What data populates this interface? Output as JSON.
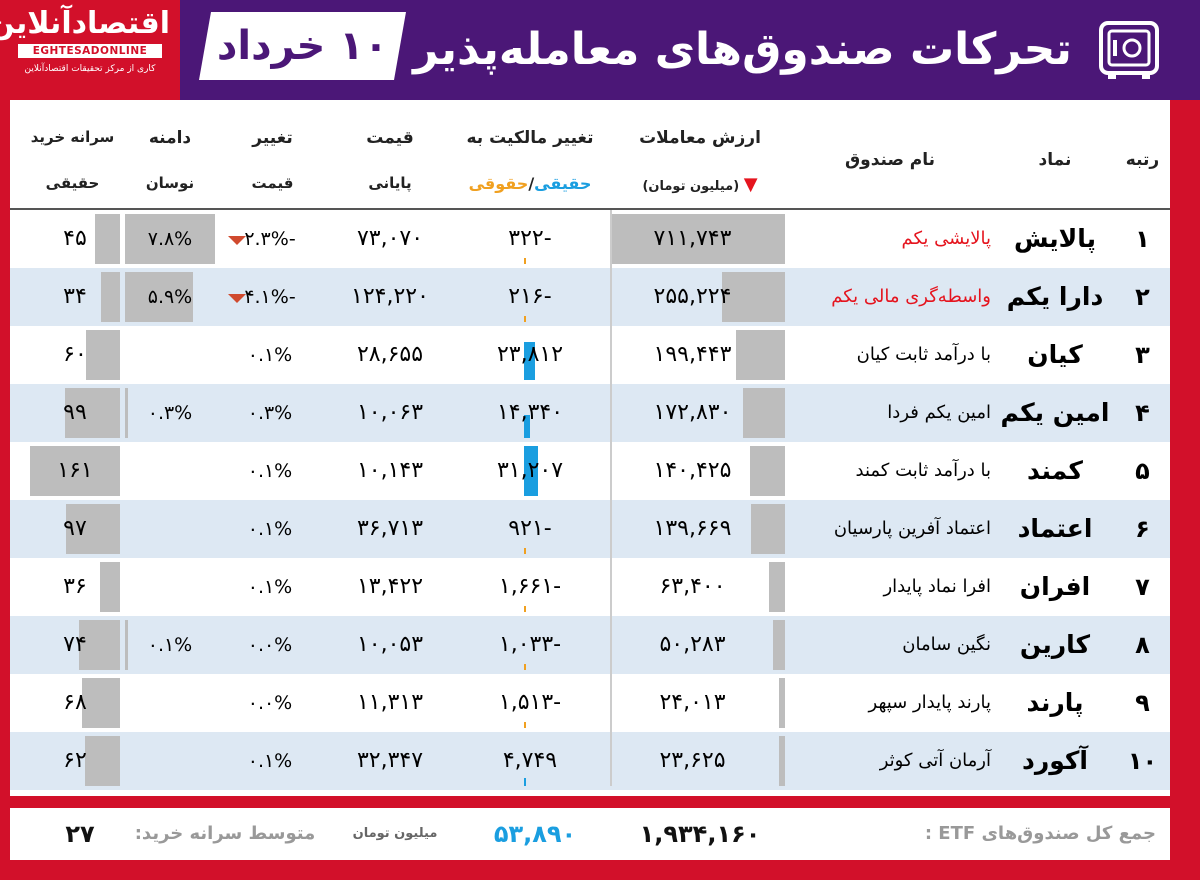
{
  "header": {
    "title": "تحرکات صندوق‌های معامله‌پذیر",
    "date": "۱۰ خرداد",
    "logo": {
      "name": "اقتصادآنلاین",
      "latin": "EGHTESADONLINE",
      "tagline": "کاری از مرکز تحقیقات اقتصادآنلاین"
    }
  },
  "columns": {
    "rank": "رتبه",
    "symbol": "نماد",
    "fund_name": "نام صندوق",
    "trade_value_l1": "ارزش معاملات",
    "trade_value_l2": "(میلیون تومان)",
    "ownership_l1": "تغییر مالکیت به",
    "ownership_l2a": "حقیقی",
    "ownership_sep": "/",
    "ownership_l2b": "حقوقی",
    "price_l1": "قیمت",
    "price_l2": "پایانی",
    "change_l1": "تغییر",
    "change_l2": "قیمت",
    "range_l1": "دامنه",
    "range_l2": "نوسان",
    "percap_l1": "سرانه خرید",
    "percap_l2": "حقیقی"
  },
  "colors": {
    "header_purple": "#4b1777",
    "brand_red": "#d2102a",
    "highlight_red": "#e5141e",
    "buy_blue": "#1a9ee0",
    "sell_orange": "#f0a020",
    "bar_gray": "#bdbdbd"
  },
  "rows": [
    {
      "rank": "۱",
      "symbol": "پالایش",
      "name": "پالایشی یکم",
      "name_red": true,
      "trade": "۷۱۱,۷۴۳",
      "trade_val": 711743,
      "own": "-۳۲۲",
      "own_val": -322,
      "price": "۷۳,۰۷۰",
      "change": "-۲.۳%",
      "down": true,
      "range": "۷.۸%",
      "range_val": 7.8,
      "percap": "۴۵",
      "percap_val": 45
    },
    {
      "rank": "۲",
      "symbol": "دارا یکم",
      "name": "واسطه‌گری مالی یکم",
      "name_red": true,
      "trade": "۲۵۵,۲۲۴",
      "trade_val": 255224,
      "own": "-۲۱۶",
      "own_val": -216,
      "price": "۱۲۴,۲۲۰",
      "change": "-۴.۱%",
      "down": true,
      "range": "۵.۹%",
      "range_val": 5.9,
      "percap": "۳۴",
      "percap_val": 34
    },
    {
      "rank": "۳",
      "symbol": "کیان",
      "name": "با درآمد ثابت کیان",
      "name_red": false,
      "trade": "۱۹۹,۴۴۳",
      "trade_val": 199443,
      "own": "۲۳,۸۱۲",
      "own_val": 23812,
      "price": "۲۸,۶۵۵",
      "change": "۰.۱%",
      "down": false,
      "range": "",
      "range_val": 0,
      "percap": "۶۰",
      "percap_val": 60
    },
    {
      "rank": "۴",
      "symbol": "امین یکم",
      "name": "امین یکم فردا",
      "name_red": false,
      "trade": "۱۷۲,۸۳۰",
      "trade_val": 172830,
      "own": "۱۴,۳۴۰",
      "own_val": 14340,
      "price": "۱۰,۰۶۳",
      "change": "۰.۳%",
      "down": false,
      "range": "۰.۳%",
      "range_val": 0.3,
      "percap": "۹۹",
      "percap_val": 99
    },
    {
      "rank": "۵",
      "symbol": "کمند",
      "name": "با درآمد ثابت کمند",
      "name_red": false,
      "trade": "۱۴۰,۴۲۵",
      "trade_val": 140425,
      "own": "۳۱,۲۰۷",
      "own_val": 31207,
      "price": "۱۰,۱۴۳",
      "change": "۰.۱%",
      "down": false,
      "range": "",
      "range_val": 0,
      "percap": "۱۶۱",
      "percap_val": 161
    },
    {
      "rank": "۶",
      "symbol": "اعتماد",
      "name": "اعتماد آفرین پارسیان",
      "name_red": false,
      "trade": "۱۳۹,۶۶۹",
      "trade_val": 139669,
      "own": "-۹۲۱",
      "own_val": -921,
      "price": "۳۶,۷۱۳",
      "change": "۰.۱%",
      "down": false,
      "range": "",
      "range_val": 0,
      "percap": "۹۷",
      "percap_val": 97
    },
    {
      "rank": "۷",
      "symbol": "افران",
      "name": "افرا نماد پایدار",
      "name_red": false,
      "trade": "۶۳,۴۰۰",
      "trade_val": 63400,
      "own": "-۱,۶۶۱",
      "own_val": -1661,
      "price": "۱۳,۴۲۲",
      "change": "۰.۱%",
      "down": false,
      "range": "",
      "range_val": 0,
      "percap": "۳۶",
      "percap_val": 36
    },
    {
      "rank": "۸",
      "symbol": "کارین",
      "name": "نگین سامان",
      "name_red": false,
      "trade": "۵۰,۲۸۳",
      "trade_val": 50283,
      "own": "-۱,۰۳۳",
      "own_val": -1033,
      "price": "۱۰,۰۵۳",
      "change": "۰.۰%",
      "down": false,
      "range": "۰.۱%",
      "range_val": 0.1,
      "percap": "۷۴",
      "percap_val": 74
    },
    {
      "rank": "۹",
      "symbol": "پارند",
      "name": "پارند پایدار سپهر",
      "name_red": false,
      "trade": "۲۴,۰۱۳",
      "trade_val": 24013,
      "own": "-۱,۵۱۳",
      "own_val": -1513,
      "price": "۱۱,۳۱۳",
      "change": "۰.۰%",
      "down": false,
      "range": "",
      "range_val": 0,
      "percap": "۶۸",
      "percap_val": 68
    },
    {
      "rank": "۱۰",
      "symbol": "آکورد",
      "name": "آرمان آتی کوثر",
      "name_red": false,
      "trade": "۲۳,۶۲۵",
      "trade_val": 23625,
      "own": "۴,۷۴۹",
      "own_val": 4749,
      "price": "۳۲,۳۴۷",
      "change": "۰.۱%",
      "down": false,
      "range": "",
      "range_val": 0,
      "percap": "۶۲",
      "percap_val": 62
    }
  ],
  "footer": {
    "total_label": "جمع کل صندوق‌های ETF :",
    "total_value": "۱,۹۳۴,۱۶۰",
    "flow_value": "۵۳,۸۹۰",
    "unit": "میلیون تومان",
    "avg_label": "متوسط سرانه خرید:",
    "avg_value": "۲۷"
  }
}
